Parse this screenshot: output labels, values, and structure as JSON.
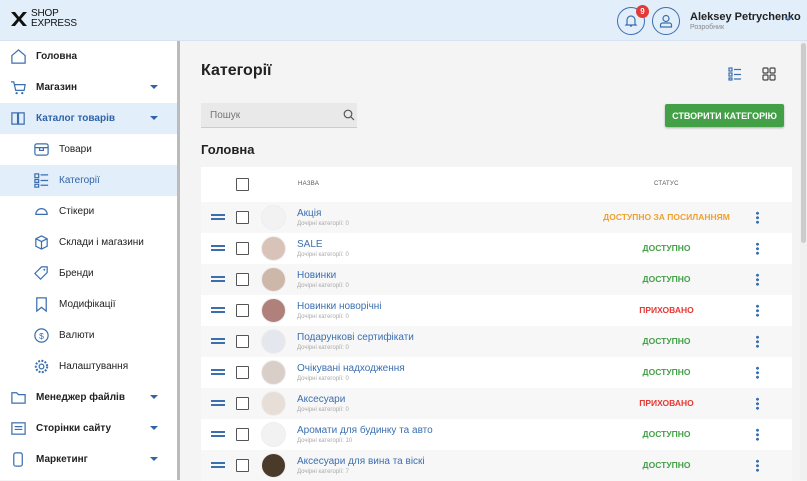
{
  "header": {
    "logo": "SHOP EXPRESS",
    "notifications": "9",
    "user_name": "Aleksey Petrychenko",
    "user_role": "Розробник"
  },
  "sidebar": {
    "items": [
      {
        "label": "Головна",
        "icon": "home-icon",
        "level": "top"
      },
      {
        "label": "Магазин",
        "icon": "cart-icon",
        "level": "top",
        "expandable": true
      },
      {
        "label": "Каталог товарів",
        "icon": "book-icon",
        "level": "top",
        "expandable": true,
        "selected": true
      },
      {
        "label": "Товари",
        "icon": "box-icon",
        "level": "sub"
      },
      {
        "label": "Категорії",
        "icon": "list-icon",
        "level": "sub",
        "selected": true
      },
      {
        "label": "Стікери",
        "icon": "sticker-icon",
        "level": "sub"
      },
      {
        "label": "Склади і магазини",
        "icon": "cube-icon",
        "level": "sub"
      },
      {
        "label": "Бренди",
        "icon": "tag-icon",
        "level": "sub"
      },
      {
        "label": "Модифікації",
        "icon": "bookmark-icon",
        "level": "sub"
      },
      {
        "label": "Валюти",
        "icon": "dollar-icon",
        "level": "sub"
      },
      {
        "label": "Налаштування",
        "icon": "gear-icon",
        "level": "sub"
      },
      {
        "label": "Менеджер файлів",
        "icon": "folder-icon",
        "level": "top",
        "expandable": true
      },
      {
        "label": "Сторінки сайту",
        "icon": "pages-icon",
        "level": "top",
        "expandable": true
      },
      {
        "label": "Маркетинг",
        "icon": "marketing-icon",
        "level": "top",
        "expandable": true
      }
    ]
  },
  "main": {
    "title": "Категорії",
    "search_placeholder": "Пошук",
    "create_label": "СТВОРИТИ КАТЕГОРІЮ",
    "section": "Головна",
    "columns": {
      "name": "НАЗВА",
      "status": "СТАТУС"
    },
    "rows": [
      {
        "name": "Акція",
        "children": "Дочірні категорії: 0",
        "status": "ДОСТУПНО ЗА ПОСИЛАННЯМ",
        "status_color": "#f0a030"
      },
      {
        "name": "SALE",
        "children": "Дочірні категорії: 0",
        "status": "ДОСТУПНО",
        "status_color": "#43a047"
      },
      {
        "name": "Новинки",
        "children": "Дочірні категорії: 0",
        "status": "ДОСТУПНО",
        "status_color": "#43a047"
      },
      {
        "name": "Новинки новорічні",
        "children": "Дочірні категорії: 0",
        "status": "ПРИХОВАНО",
        "status_color": "#e53935"
      },
      {
        "name": "Подарункові сертифікати",
        "children": "Дочірні категорії: 0",
        "status": "ДОСТУПНО",
        "status_color": "#43a047"
      },
      {
        "name": "Очікувані надходження",
        "children": "Дочірні категорії: 0",
        "status": "ДОСТУПНО",
        "status_color": "#43a047"
      },
      {
        "name": "Аксесуари",
        "children": "Дочірні категорії: 0",
        "status": "ПРИХОВАНО",
        "status_color": "#e53935"
      },
      {
        "name": "Аромати для будинку та авто",
        "children": "Дочірні категорії: 10",
        "status": "ДОСТУПНО",
        "status_color": "#43a047"
      },
      {
        "name": "Аксесуари для вина та віскі",
        "children": "Дочірні категорії: 7",
        "status": "ДОСТУПНО",
        "status_color": "#43a047"
      }
    ]
  }
}
